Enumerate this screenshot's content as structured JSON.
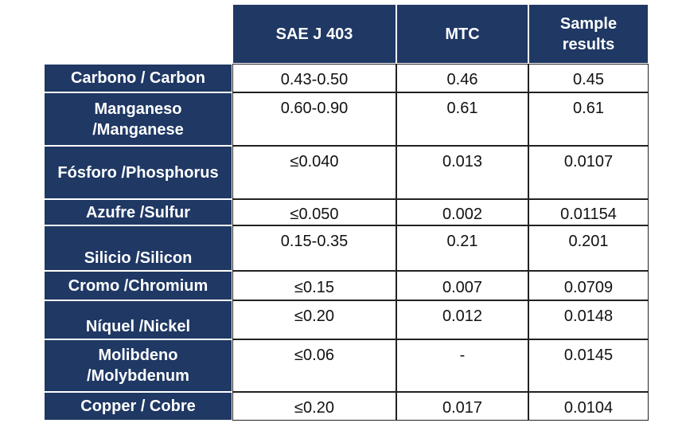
{
  "table": {
    "columns": [
      "SAE J 403",
      "MTC",
      "Sample results"
    ],
    "rows": [
      {
        "label": "Carbono / Carbon",
        "cells": [
          "0.43-0.50",
          "0.46",
          "0.45"
        ]
      },
      {
        "label": "Manganeso /Manganese",
        "cells": [
          "0.60-0.90",
          "0.61",
          "0.61"
        ]
      },
      {
        "label": "Fósforo /Phosphorus",
        "cells": [
          "≤0.040",
          "0.013",
          "0.0107"
        ]
      },
      {
        "label": "Azufre /Sulfur",
        "cells": [
          "≤0.050",
          "0.002",
          "0.01154"
        ]
      },
      {
        "label": "Silicio /Silicon",
        "cells": [
          "0.15-0.35",
          "0.21",
          "0.201"
        ]
      },
      {
        "label": "Cromo /Chromium",
        "cells": [
          "≤0.15",
          "0.007",
          "0.0709"
        ]
      },
      {
        "label": "Níquel /Nickel",
        "cells": [
          "≤0.20",
          "0.012",
          "0.0148"
        ]
      },
      {
        "label": "Molibdeno /Molybdenum",
        "cells": [
          "≤0.06",
          "-",
          "0.0145"
        ]
      },
      {
        "label": "Copper / Cobre",
        "cells": [
          "≤0.20",
          "0.017",
          "0.0104"
        ]
      }
    ]
  }
}
